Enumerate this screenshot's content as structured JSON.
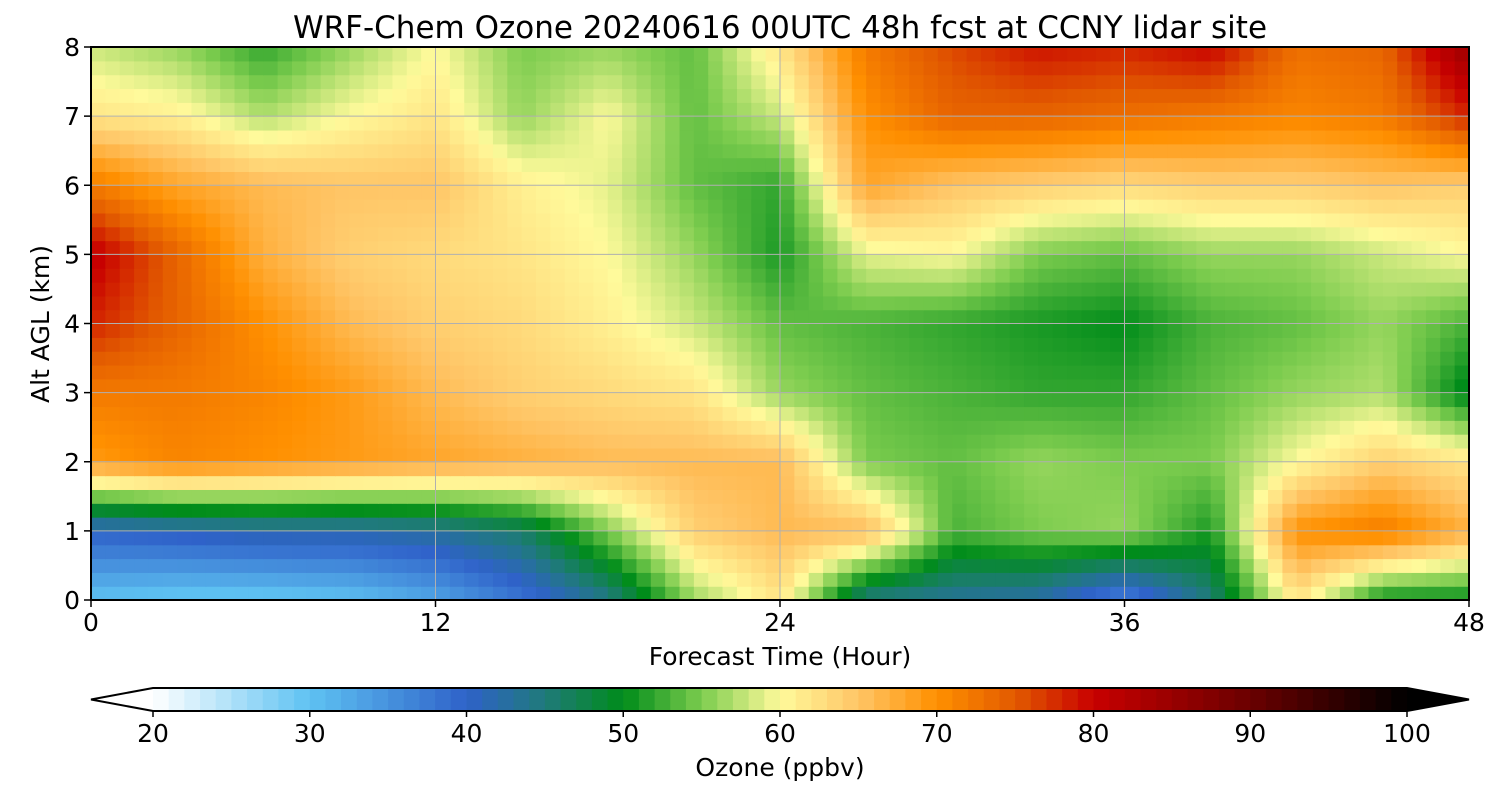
{
  "chart_data": {
    "type": "heatmap",
    "title": "WRF-Chem Ozone  20240616 00UTC 48h fcst at CCNY lidar site",
    "xlabel": "Forecast Time (Hour)",
    "ylabel": "Alt AGL (km)",
    "xlim": [
      0,
      48
    ],
    "ylim": [
      0,
      8
    ],
    "xticks": [
      0,
      12,
      24,
      36,
      48
    ],
    "yticks": [
      0,
      1,
      2,
      3,
      4,
      5,
      6,
      7,
      8
    ],
    "grid": true,
    "colorbar": {
      "label": "Ozone  (ppbv)",
      "orientation": "horizontal",
      "position": "bottom",
      "range": [
        20,
        100
      ],
      "ticks": [
        20,
        30,
        40,
        50,
        60,
        70,
        80,
        90,
        100
      ],
      "extend": "both",
      "stops": [
        {
          "v": 20,
          "c": "#ffffff"
        },
        {
          "v": 30,
          "c": "#5ec2f2"
        },
        {
          "v": 40,
          "c": "#2f62c9"
        },
        {
          "v": 45,
          "c": "#1f7a7a"
        },
        {
          "v": 50,
          "c": "#008c1a"
        },
        {
          "v": 55,
          "c": "#7ccc4e"
        },
        {
          "v": 60,
          "c": "#fffa9b"
        },
        {
          "v": 65,
          "c": "#ffc566"
        },
        {
          "v": 70,
          "c": "#ff9000"
        },
        {
          "v": 75,
          "c": "#e25a00"
        },
        {
          "v": 80,
          "c": "#c80000"
        },
        {
          "v": 90,
          "c": "#6a0000"
        },
        {
          "v": 100,
          "c": "#000000"
        }
      ]
    },
    "x_hours": [
      0,
      3,
      6,
      9,
      12,
      15,
      18,
      21,
      24,
      27,
      30,
      33,
      36,
      39,
      42,
      45,
      48
    ],
    "y_km": [
      0,
      1,
      2,
      3,
      4,
      5,
      6,
      7,
      8
    ],
    "ozone_ppbv": [
      [
        30,
        29,
        29,
        30,
        33,
        38,
        44,
        56,
        62,
        44,
        43,
        42,
        36,
        45,
        62,
        50,
        50
      ],
      [
        40,
        41,
        42,
        42,
        43,
        46,
        55,
        64,
        66,
        66,
        53,
        55,
        56,
        51,
        70,
        72,
        67
      ],
      [
        69,
        71,
        70,
        69,
        68,
        67,
        66,
        66,
        66,
        55,
        54,
        56,
        55,
        55,
        60,
        64,
        62
      ],
      [
        72,
        72,
        71,
        69,
        66,
        64,
        63,
        62,
        56,
        54,
        53,
        52,
        52,
        54,
        56,
        57,
        49
      ],
      [
        78,
        74,
        70,
        66,
        64,
        63,
        61,
        58,
        54,
        53,
        52,
        51,
        50,
        53,
        54,
        56,
        53
      ],
      [
        81,
        74,
        67,
        64,
        63,
        62,
        60,
        56,
        51,
        59,
        60,
        55,
        54,
        56,
        56,
        58,
        60
      ],
      [
        72,
        68,
        66,
        65,
        65,
        61,
        59,
        54,
        52,
        68,
        65,
        64,
        63,
        64,
        64,
        65,
        64
      ],
      [
        62,
        61,
        57,
        60,
        62,
        56,
        60,
        54,
        58,
        70,
        74,
        74,
        73,
        72,
        71,
        72,
        78
      ],
      [
        58,
        56,
        52,
        56,
        60,
        55,
        56,
        54,
        62,
        72,
        76,
        79,
        78,
        80,
        73,
        74,
        85
      ]
    ]
  }
}
